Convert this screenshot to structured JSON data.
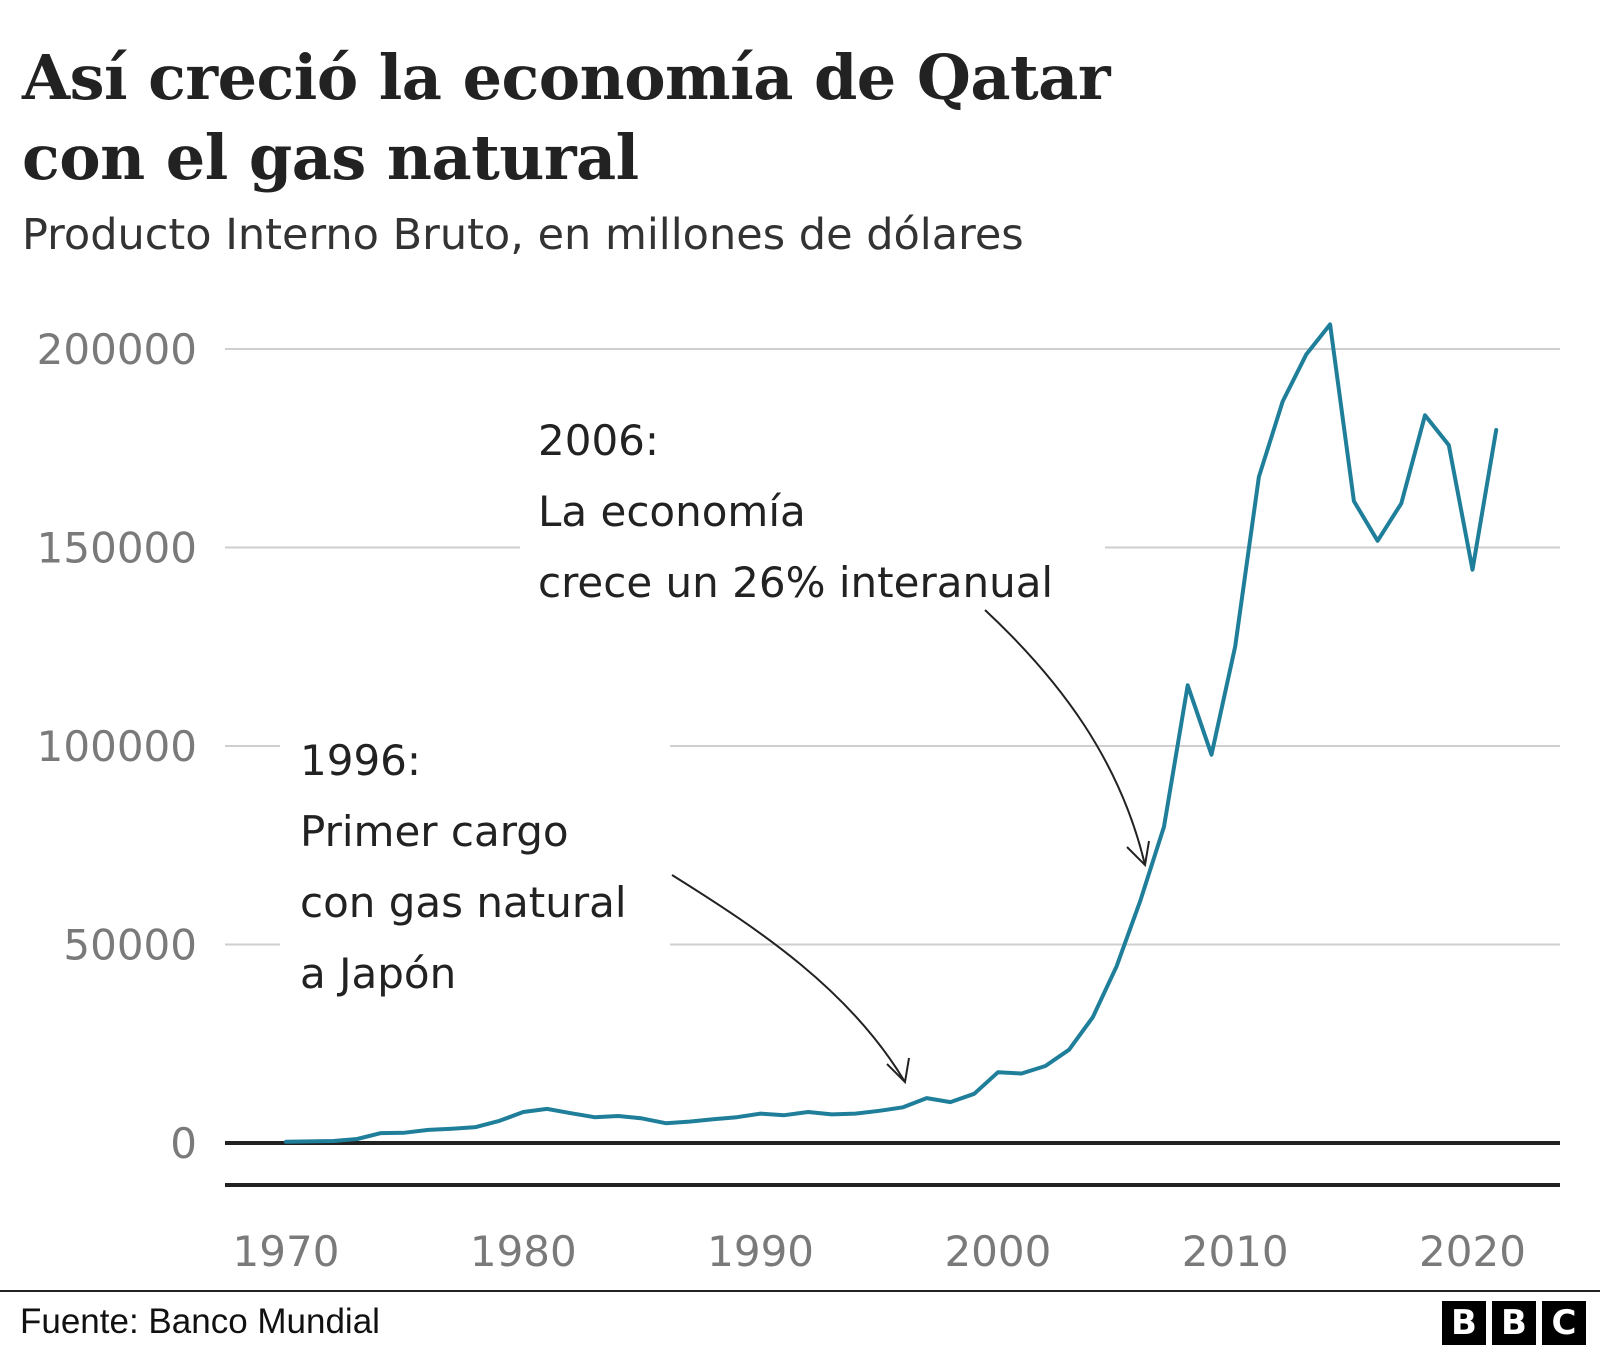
{
  "header": {
    "title": "Así creció la economía de Qatar con el gas natural",
    "subtitle": "Producto Interno Bruto, en millones de dólares"
  },
  "footer": {
    "source": "Fuente: Banco Mundial",
    "logo_letters": [
      "B",
      "B",
      "C"
    ]
  },
  "colors": {
    "line": "#1f7f9a",
    "grid": "#cfcfcf",
    "axis": "#222222",
    "tick_text": "#7a7a7a"
  },
  "chart_data": {
    "type": "line",
    "title": "Así creció la economía de Qatar con el gas natural",
    "subtitle": "Producto Interno Bruto, en millones de dólares",
    "xlabel": "",
    "ylabel": "",
    "xlim": [
      1970,
      2021
    ],
    "ylim": [
      0,
      200000
    ],
    "grid": true,
    "x_ticks": [
      1970,
      1980,
      1990,
      2000,
      2010,
      2020
    ],
    "y_ticks": [
      0,
      50000,
      100000,
      150000,
      200000
    ],
    "series": [
      {
        "x": [
          1970,
          1971,
          1972,
          1973,
          1974,
          1975,
          1976,
          1977,
          1978,
          1979,
          1980,
          1981,
          1982,
          1983,
          1984,
          1985,
          1986,
          1987,
          1988,
          1989,
          1990,
          1991,
          1992,
          1993,
          1994,
          1995,
          1996,
          1997,
          1998,
          1999,
          2000,
          2001,
          2002,
          2003,
          2004,
          2005,
          2006,
          2007,
          2008,
          2009,
          2010,
          2011,
          2012,
          2013,
          2014,
          2015,
          2016,
          2017,
          2018,
          2019,
          2020,
          2021
        ],
        "values": [
          300,
          400,
          500,
          1000,
          2500,
          2600,
          3300,
          3600,
          4000,
          5600,
          7800,
          8600,
          7500,
          6500,
          6800,
          6200,
          5000,
          5400,
          6000,
          6500,
          7400,
          7000,
          7800,
          7200,
          7400,
          8100,
          9000,
          11300,
          10300,
          12400,
          17800,
          17500,
          19400,
          23500,
          31700,
          44500,
          61000,
          79700,
          115300,
          97800,
          125100,
          167800,
          186800,
          198700,
          206200,
          161700,
          151700,
          161100,
          183300,
          175800,
          144400,
          179600
        ]
      }
    ],
    "annotations": [
      {
        "year": 1996,
        "lines": [
          "1996:",
          "Primer cargo",
          "con gas natural",
          "a Japón"
        ]
      },
      {
        "year": 2006,
        "lines": [
          "2006:",
          "La economía",
          "crece un 26% interanual"
        ]
      }
    ]
  }
}
